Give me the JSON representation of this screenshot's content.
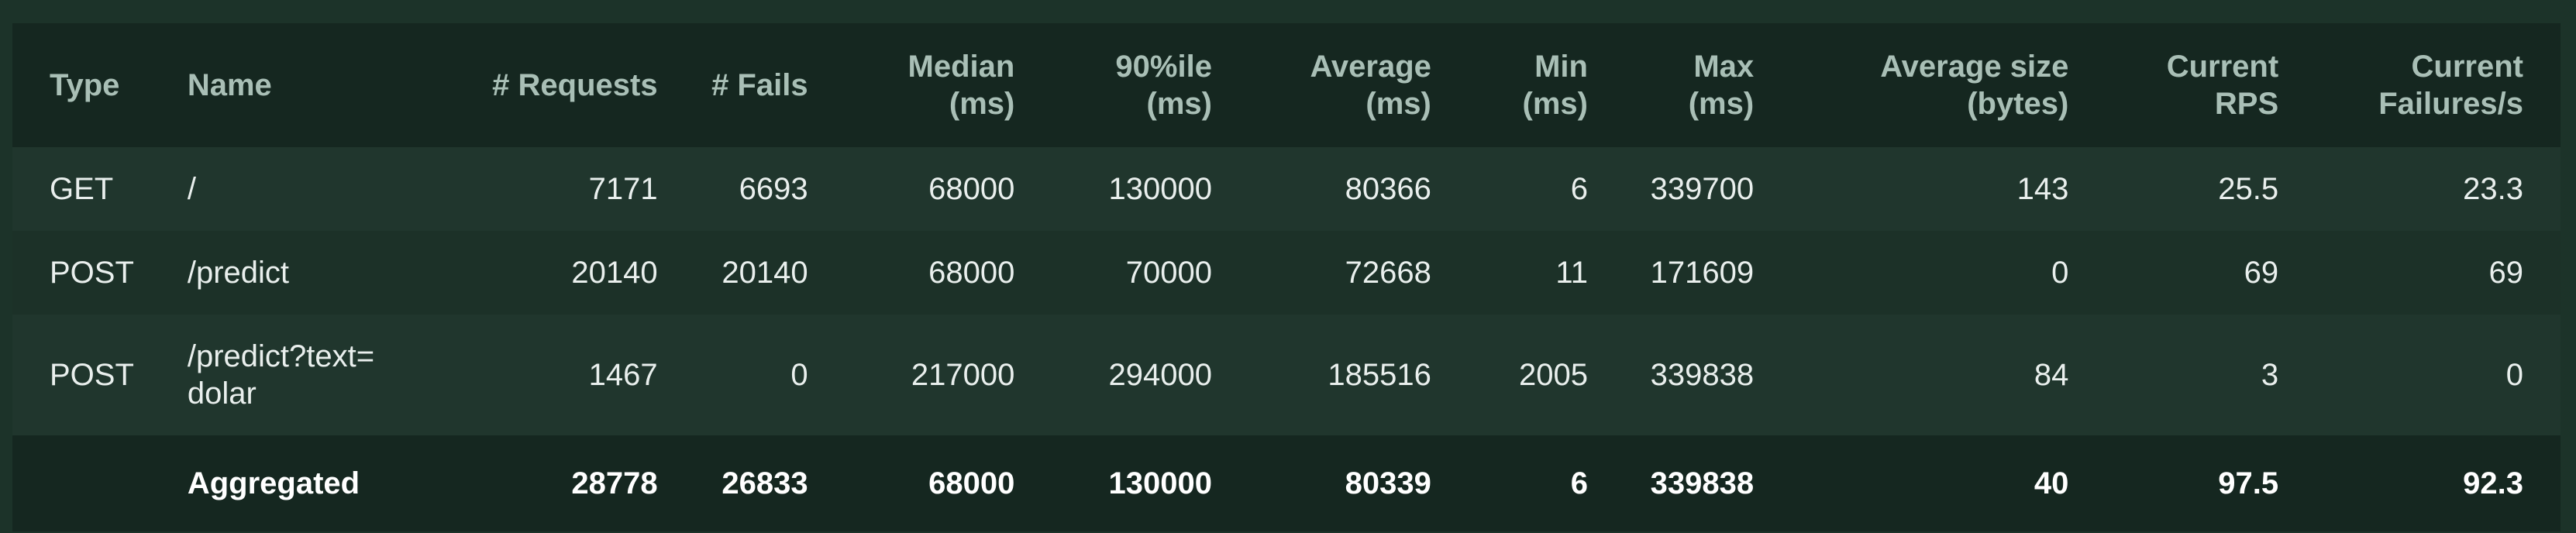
{
  "table": {
    "headers": {
      "type": "Type",
      "name": "Name",
      "requests": "# Requests",
      "fails": "# Fails",
      "median_1": "Median",
      "median_2": "(ms)",
      "p90_1": "90%ile",
      "p90_2": "(ms)",
      "average_1": "Average",
      "average_2": "(ms)",
      "min_1": "Min",
      "min_2": "(ms)",
      "max_1": "Max",
      "max_2": "(ms)",
      "avg_size_1": "Average size",
      "avg_size_2": "(bytes)",
      "rps_1": "Current",
      "rps_2": "RPS",
      "fps_1": "Current",
      "fps_2": "Failures/s"
    },
    "rows": [
      {
        "type": "GET",
        "name": "/",
        "requests": "7171",
        "fails": "6693",
        "median": "68000",
        "p90": "130000",
        "average": "80366",
        "min": "6",
        "max": "339700",
        "avg_size": "143",
        "rps": "25.5",
        "fps": "23.3"
      },
      {
        "type": "POST",
        "name": "/predict",
        "requests": "20140",
        "fails": "20140",
        "median": "68000",
        "p90": "70000",
        "average": "72668",
        "min": "11",
        "max": "171609",
        "avg_size": "0",
        "rps": "69",
        "fps": "69"
      },
      {
        "type": "POST",
        "name": "/predict?text=dolar",
        "requests": "1467",
        "fails": "0",
        "median": "217000",
        "p90": "294000",
        "average": "185516",
        "min": "2005",
        "max": "339838",
        "avg_size": "84",
        "rps": "3",
        "fps": "0"
      }
    ],
    "aggregated": {
      "type": "",
      "name": "Aggregated",
      "requests": "28778",
      "fails": "26833",
      "median": "68000",
      "p90": "130000",
      "average": "80339",
      "min": "6",
      "max": "339838",
      "avg_size": "40",
      "rps": "97.5",
      "fps": "92.3"
    }
  }
}
